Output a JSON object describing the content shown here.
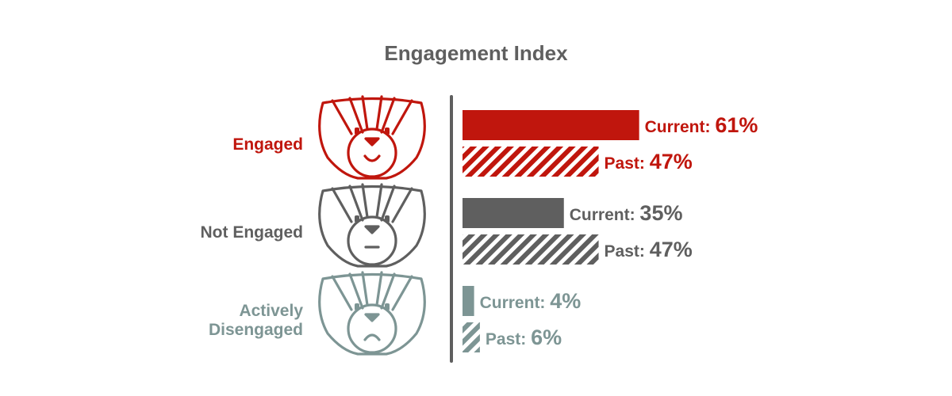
{
  "chart_data": {
    "type": "bar",
    "orientation": "horizontal",
    "title": "Engagement Index",
    "categories": [
      {
        "label_lines": [
          "Engaged"
        ],
        "color": "#c0160d",
        "icon": "happy-badger-face-icon"
      },
      {
        "label_lines": [
          "Not Engaged"
        ],
        "color": "#5f5f5f",
        "icon": "neutral-badger-face-icon"
      },
      {
        "label_lines": [
          "Actively",
          "Disengaged"
        ],
        "color": "#7d9594",
        "icon": "sad-badger-face-icon"
      }
    ],
    "series": [
      {
        "key": "current",
        "fill": "solid",
        "prefix": "Current:",
        "values": [
          61,
          35,
          4
        ],
        "labels": [
          "61%",
          "35%",
          "4%"
        ]
      },
      {
        "key": "past",
        "fill": "hatched",
        "prefix": "Past:",
        "values": [
          47,
          47,
          6
        ],
        "labels": [
          "47%",
          "47%",
          "6%"
        ]
      }
    ],
    "unit": "%",
    "xlim": [
      0,
      100
    ],
    "grid": false,
    "legend": "none"
  }
}
